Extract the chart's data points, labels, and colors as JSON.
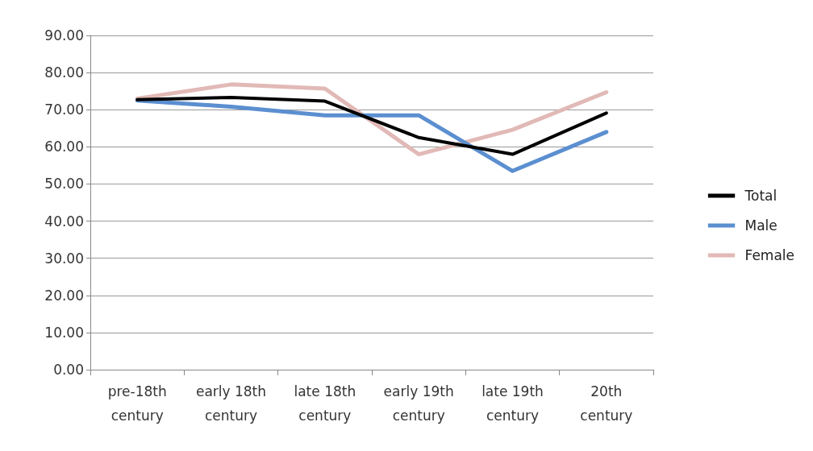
{
  "chart_data": {
    "type": "line",
    "categories": [
      "pre-18th\ncentury",
      "early 18th\ncentury",
      "late 18th\ncentury",
      "early 19th\ncentury",
      "late 19th\ncentury",
      "20th\ncentury"
    ],
    "series": [
      {
        "name": "Total",
        "color": "#000000",
        "values": [
          72.7,
          73.3,
          72.3,
          62.5,
          58.0,
          69.1
        ]
      },
      {
        "name": "Male",
        "color": "#5b8fd0",
        "values": [
          72.5,
          70.8,
          68.5,
          68.5,
          53.5,
          64.0
        ]
      },
      {
        "name": "Female",
        "color": "#e1b9b6",
        "values": [
          73.0,
          76.8,
          75.7,
          58.0,
          64.6,
          74.7
        ]
      }
    ],
    "ylim": [
      0,
      90
    ],
    "yticks": [
      {
        "value": 0,
        "label": "0.00"
      },
      {
        "value": 10,
        "label": "10.00"
      },
      {
        "value": 20,
        "label": "20.00"
      },
      {
        "value": 30,
        "label": "30.00"
      },
      {
        "value": 40,
        "label": "40.00"
      },
      {
        "value": 50,
        "label": "50.00"
      },
      {
        "value": 60,
        "label": "60.00"
      },
      {
        "value": 70,
        "label": "70.00"
      },
      {
        "value": 80,
        "label": "80.00"
      },
      {
        "value": 90,
        "label": "90.00"
      }
    ],
    "grid": "y",
    "legend": "right",
    "marker": "none",
    "line_style": "solid"
  }
}
